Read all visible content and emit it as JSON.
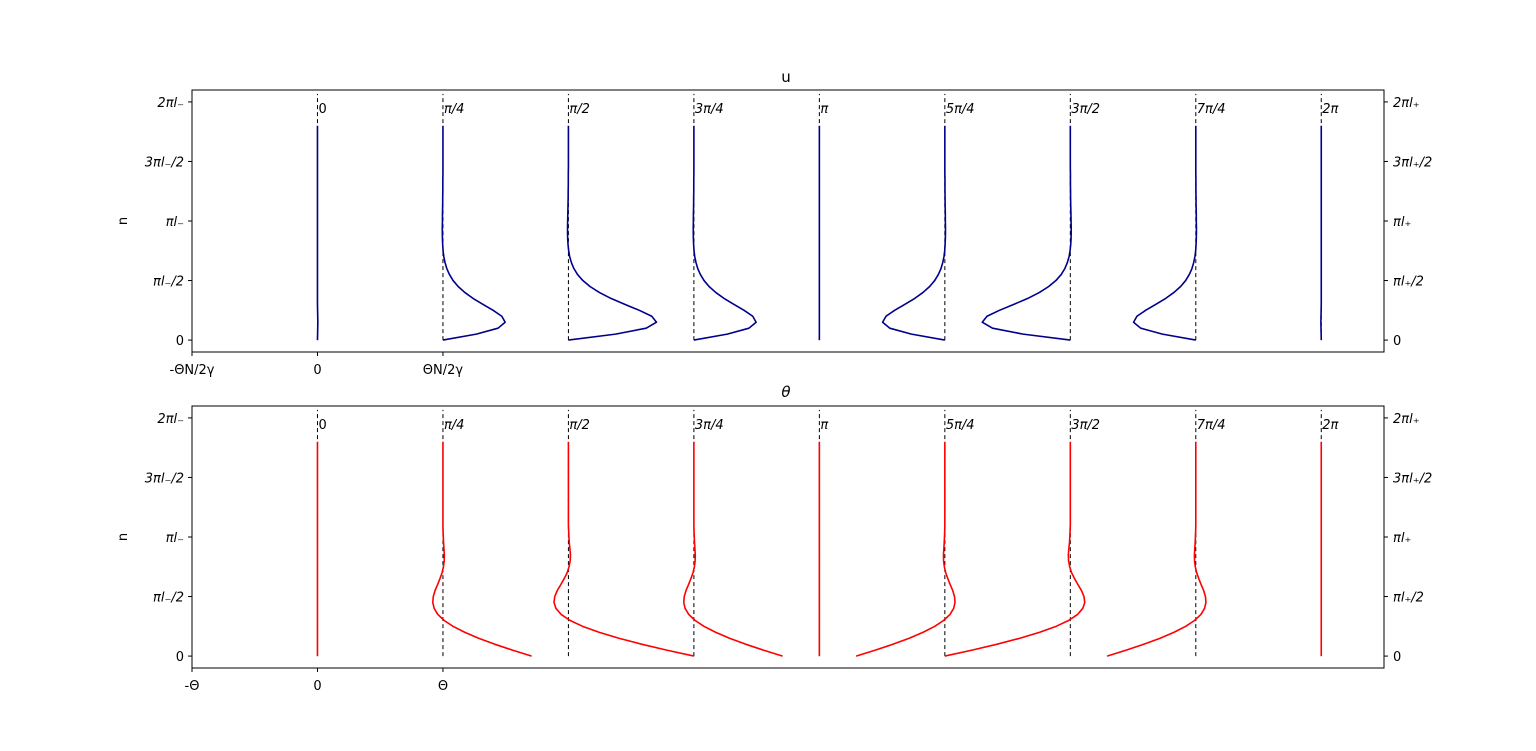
{
  "chart_data": [
    {
      "type": "line",
      "title": "u",
      "ylabel": "n",
      "xlim": [
        -1,
        8.5
      ],
      "ylim": [
        -0.2,
        4.2
      ],
      "left_ticks": [
        {
          "v": 0,
          "label": "0"
        },
        {
          "v": 1,
          "label": "πl₋/2"
        },
        {
          "v": 2,
          "label": "πl₋"
        },
        {
          "v": 3,
          "label": "3πl₋/2"
        },
        {
          "v": 4,
          "label": "2πl₋"
        }
      ],
      "right_ticks": [
        {
          "v": 0,
          "label": "0"
        },
        {
          "v": 1,
          "label": "πl₊/2"
        },
        {
          "v": 2,
          "label": "πl₊"
        },
        {
          "v": 3,
          "label": "3πl₊/2"
        },
        {
          "v": 4,
          "label": "2πl₊"
        }
      ],
      "x_ticks": [
        {
          "v": -1,
          "label": "-ΘN/2γ"
        },
        {
          "v": 0,
          "label": "0"
        },
        {
          "v": 1,
          "label": "ΘN/2γ"
        }
      ],
      "phase_labels": [
        "0",
        "π/4",
        "π/2",
        "3π/4",
        "π",
        "5π/4",
        "3π/2",
        "7π/4",
        "2π"
      ],
      "color": "#00008b",
      "series": [
        {
          "offset": 0,
          "x": [
            0,
            0.001,
            0.002,
            0.003,
            0.002,
            0.001,
            0.0,
            0.0,
            0.0,
            0.0,
            0.0,
            0.0,
            0.0,
            0.0,
            0.0,
            0.0,
            0.0,
            0.0,
            0.0,
            0.0,
            0.0,
            0.0,
            0.0,
            0.0,
            0.0,
            0.0,
            0.0,
            0.0,
            0.0,
            0.0,
            0.0,
            0.0,
            0.0,
            0.0,
            0.0,
            0.0,
            0.0
          ]
        },
        {
          "offset": 1,
          "x": [
            0,
            0.266,
            0.439,
            0.496,
            0.469,
            0.4,
            0.318,
            0.24,
            0.174,
            0.121,
            0.081,
            0.052,
            0.031,
            0.017,
            0.007,
            0.001,
            -0.002,
            -0.004,
            -0.005,
            -0.005,
            -0.004,
            -0.004,
            -0.003,
            -0.002,
            -0.002,
            -0.001,
            -0.001,
            -0.001,
            0.0,
            0.0,
            0.0,
            0.0,
            0.0,
            0.0,
            0.0,
            0.0,
            0.0
          ]
        },
        {
          "offset": 2,
          "x": [
            0,
            0.376,
            0.62,
            0.702,
            0.664,
            0.565,
            0.45,
            0.339,
            0.246,
            0.172,
            0.115,
            0.073,
            0.044,
            0.024,
            0.01,
            0.002,
            -0.003,
            -0.006,
            -0.007,
            -0.007,
            -0.006,
            -0.005,
            -0.004,
            -0.003,
            -0.002,
            -0.002,
            -0.001,
            -0.001,
            -0.001,
            0.0,
            0.0,
            0.0,
            0.0,
            0.0,
            0.0,
            0.0,
            0.0
          ]
        },
        {
          "offset": 3,
          "x": [
            0,
            0.266,
            0.439,
            0.496,
            0.469,
            0.4,
            0.318,
            0.24,
            0.174,
            0.121,
            0.081,
            0.052,
            0.031,
            0.017,
            0.007,
            0.001,
            -0.002,
            -0.004,
            -0.005,
            -0.005,
            -0.004,
            -0.004,
            -0.003,
            -0.002,
            -0.002,
            -0.001,
            -0.001,
            -0.001,
            0.0,
            0.0,
            0.0,
            0.0,
            0.0,
            0.0,
            0.0,
            0.0,
            0.0
          ]
        },
        {
          "offset": 4,
          "x": [
            0,
            0.0,
            0.0,
            0.0,
            0.0,
            0.0,
            0.0,
            0.0,
            0.0,
            0.0,
            0.0,
            0.0,
            0.0,
            0.0,
            0.0,
            0.0,
            0.0,
            0.0,
            0.0,
            0.0,
            0.0,
            0.0,
            0.0,
            0.0,
            0.0,
            0.0,
            0.0,
            0.0,
            0.0,
            0.0,
            0.0,
            0.0,
            0.0,
            0.0,
            0.0,
            0.0,
            0.0
          ]
        },
        {
          "offset": 5,
          "x": [
            0,
            -0.266,
            -0.439,
            -0.496,
            -0.469,
            -0.4,
            -0.318,
            -0.24,
            -0.174,
            -0.121,
            -0.081,
            -0.052,
            -0.031,
            -0.017,
            -0.007,
            -0.001,
            0.002,
            0.004,
            0.005,
            0.005,
            0.004,
            0.004,
            0.003,
            0.002,
            0.002,
            0.001,
            0.001,
            0.001,
            0.0,
            0.0,
            0.0,
            0.0,
            0.0,
            0.0,
            0.0,
            0.0,
            0.0
          ]
        },
        {
          "offset": 6,
          "x": [
            0,
            -0.376,
            -0.62,
            -0.702,
            -0.664,
            -0.565,
            -0.45,
            -0.339,
            -0.246,
            -0.172,
            -0.115,
            -0.073,
            -0.044,
            -0.024,
            -0.01,
            -0.002,
            0.003,
            0.006,
            0.007,
            0.007,
            0.006,
            0.005,
            0.004,
            0.003,
            0.002,
            0.002,
            0.001,
            0.001,
            0.001,
            0.0,
            0.0,
            0.0,
            0.0,
            0.0,
            0.0,
            0.0,
            0.0
          ]
        },
        {
          "offset": 7,
          "x": [
            0,
            -0.266,
            -0.439,
            -0.496,
            -0.469,
            -0.4,
            -0.318,
            -0.24,
            -0.174,
            -0.121,
            -0.081,
            -0.052,
            -0.031,
            -0.017,
            -0.007,
            -0.001,
            0.002,
            0.004,
            0.005,
            0.005,
            0.004,
            0.004,
            0.003,
            0.002,
            0.002,
            0.001,
            0.001,
            0.001,
            0.0,
            0.0,
            0.0,
            0.0,
            0.0,
            0.0,
            0.0,
            0.0,
            0.0
          ]
        },
        {
          "offset": 8,
          "x": [
            0,
            -0.001,
            -0.002,
            -0.003,
            -0.002,
            -0.001,
            0.0,
            0.0,
            0.0,
            0.0,
            0.0,
            0.0,
            0.0,
            0.0,
            0.0,
            0.0,
            0.0,
            0.0,
            0.0,
            0.0,
            0.0,
            0.0,
            0.0,
            0.0,
            0.0,
            0.0,
            0.0,
            0.0,
            0.0,
            0.0,
            0.0,
            0.0,
            0.0,
            0.0,
            0.0,
            0.0,
            0.0
          ]
        }
      ]
    },
    {
      "type": "line",
      "title": "θ",
      "ylabel": "n",
      "xlim": [
        -1,
        8.5
      ],
      "ylim": [
        -0.2,
        4.2
      ],
      "left_ticks": [
        {
          "v": 0,
          "label": "0"
        },
        {
          "v": 1,
          "label": "πl₋/2"
        },
        {
          "v": 2,
          "label": "πl₋"
        },
        {
          "v": 3,
          "label": "3πl₋/2"
        },
        {
          "v": 4,
          "label": "2πl₋"
        }
      ],
      "right_ticks": [
        {
          "v": 0,
          "label": "0"
        },
        {
          "v": 1,
          "label": "πl₊/2"
        },
        {
          "v": 2,
          "label": "πl₊"
        },
        {
          "v": 3,
          "label": "3πl₊/2"
        },
        {
          "v": 4,
          "label": "2πl₊"
        }
      ],
      "x_ticks": [
        {
          "v": -1,
          "label": "-Θ"
        },
        {
          "v": 0,
          "label": "0"
        },
        {
          "v": 1,
          "label": "Θ"
        }
      ],
      "phase_labels": [
        "0",
        "π/4",
        "π/2",
        "3π/4",
        "π",
        "5π/4",
        "3π/2",
        "7π/4",
        "2π"
      ],
      "color": "#ff0000",
      "series": [
        {
          "offset": 0,
          "x": [
            0.0,
            0.0,
            0.0,
            0.0,
            0.0,
            0.0,
            0.0,
            0.0,
            0.0,
            0.0,
            0.0,
            0.0,
            0.0,
            0.0,
            0.0,
            0.0,
            0.0,
            0.0,
            0.0,
            0.0,
            0.0,
            0.0,
            0.0,
            0.0,
            0.0,
            0.0,
            0.0,
            0.0,
            0.0,
            0.0,
            0.0,
            0.0,
            0.0,
            0.0,
            0.0,
            0.0,
            0.0
          ]
        },
        {
          "offset": 1,
          "x": [
            0.707,
            0.554,
            0.412,
            0.284,
            0.173,
            0.08,
            0.009,
            -0.041,
            -0.07,
            -0.081,
            -0.077,
            -0.063,
            -0.043,
            -0.024,
            -0.007,
            0.004,
            0.01,
            0.011,
            0.008,
            0.005,
            0.003,
            0.001,
            0.0,
            0.0,
            0.0,
            0.0,
            0.0,
            0.0,
            0.0,
            0.0,
            0.0,
            0.0,
            0.0,
            0.0,
            0.0,
            0.0,
            0.0
          ]
        },
        {
          "offset": 2,
          "x": [
            1.0,
            0.783,
            0.583,
            0.402,
            0.244,
            0.113,
            0.012,
            -0.058,
            -0.099,
            -0.115,
            -0.109,
            -0.089,
            -0.061,
            -0.034,
            -0.01,
            0.005,
            0.014,
            0.016,
            0.012,
            0.007,
            0.004,
            0.002,
            0.0,
            0.0,
            0.0,
            0.0,
            0.0,
            0.0,
            0.0,
            0.0,
            0.0,
            0.0,
            0.0,
            0.0,
            0.0,
            0.0,
            0.0
          ]
        },
        {
          "offset": 3,
          "x": [
            0.707,
            0.554,
            0.412,
            0.284,
            0.173,
            0.08,
            0.009,
            -0.041,
            -0.07,
            -0.081,
            -0.077,
            -0.063,
            -0.043,
            -0.024,
            -0.007,
            0.004,
            0.01,
            0.011,
            0.008,
            0.005,
            0.003,
            0.001,
            0.0,
            0.0,
            0.0,
            0.0,
            0.0,
            0.0,
            0.0,
            0.0,
            0.0,
            0.0,
            0.0,
            0.0,
            0.0,
            0.0,
            0.0
          ]
        },
        {
          "offset": 4,
          "x": [
            0.0,
            0.0,
            0.0,
            0.0,
            0.0,
            0.0,
            0.0,
            0.0,
            0.0,
            0.0,
            0.0,
            0.0,
            0.0,
            0.0,
            0.0,
            0.0,
            0.0,
            0.0,
            0.0,
            0.0,
            0.0,
            0.0,
            0.0,
            0.0,
            0.0,
            0.0,
            0.0,
            0.0,
            0.0,
            0.0,
            0.0,
            0.0,
            0.0,
            0.0,
            0.0,
            0.0,
            0.0
          ]
        },
        {
          "offset": 5,
          "x": [
            -0.707,
            -0.554,
            -0.412,
            -0.284,
            -0.173,
            -0.08,
            -0.009,
            0.041,
            0.07,
            0.081,
            0.077,
            0.063,
            0.043,
            0.024,
            0.007,
            -0.004,
            -0.01,
            -0.011,
            -0.008,
            -0.005,
            -0.003,
            -0.001,
            0.0,
            0.0,
            0.0,
            0.0,
            0.0,
            0.0,
            0.0,
            0.0,
            0.0,
            0.0,
            0.0,
            0.0,
            0.0,
            0.0,
            0.0
          ]
        },
        {
          "offset": 6,
          "x": [
            -1.0,
            -0.783,
            -0.583,
            -0.402,
            -0.244,
            -0.113,
            -0.012,
            0.058,
            0.099,
            0.115,
            0.109,
            0.089,
            0.061,
            0.034,
            0.01,
            -0.005,
            -0.014,
            -0.016,
            -0.012,
            -0.007,
            -0.004,
            -0.002,
            0.0,
            0.0,
            0.0,
            0.0,
            0.0,
            0.0,
            0.0,
            0.0,
            0.0,
            0.0,
            0.0,
            0.0,
            0.0,
            0.0,
            0.0
          ]
        },
        {
          "offset": 7,
          "x": [
            -0.707,
            -0.554,
            -0.412,
            -0.284,
            -0.173,
            -0.08,
            -0.009,
            0.041,
            0.07,
            0.081,
            0.077,
            0.063,
            0.043,
            0.024,
            0.007,
            -0.004,
            -0.01,
            -0.011,
            -0.008,
            -0.005,
            -0.003,
            -0.001,
            0.0,
            0.0,
            0.0,
            0.0,
            0.0,
            0.0,
            0.0,
            0.0,
            0.0,
            0.0,
            0.0,
            0.0,
            0.0,
            0.0,
            0.0
          ]
        },
        {
          "offset": 8,
          "x": [
            0.0,
            0.0,
            0.0,
            0.0,
            0.0,
            0.0,
            0.0,
            0.0,
            0.0,
            0.0,
            0.0,
            0.0,
            0.0,
            0.0,
            0.0,
            0.0,
            0.0,
            0.0,
            0.0,
            0.0,
            0.0,
            0.0,
            0.0,
            0.0,
            0.0,
            0.0,
            0.0,
            0.0,
            0.0,
            0.0,
            0.0,
            0.0,
            0.0,
            0.0,
            0.0,
            0.0,
            0.0
          ]
        }
      ]
    }
  ],
  "n_max": 3.6
}
